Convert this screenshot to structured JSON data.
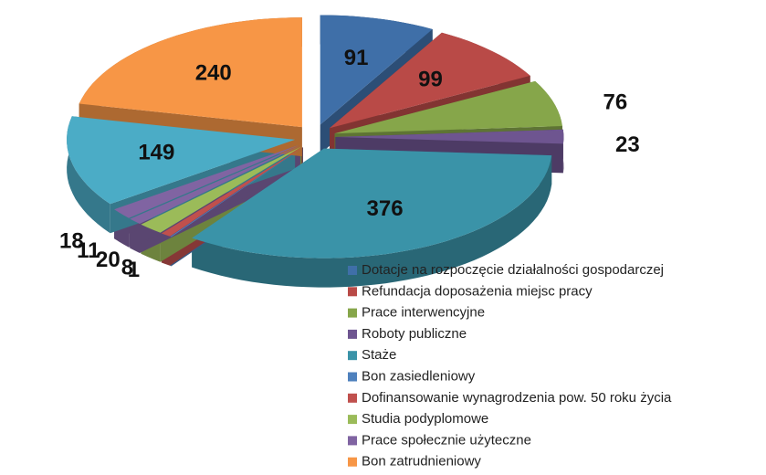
{
  "chart_data": {
    "type": "pie3d",
    "categories": [
      "Dotacje na rozpoczęcie działalności gospodarczej",
      "Refundacja doposażenia miejsc pracy",
      "Prace interwencyjne",
      "Roboty publiczne",
      "Staże",
      "Bon zasiedleniowy",
      "Dofinansowanie wynagrodzenia pow. 50 roku życia",
      "Studia podyplomowe",
      "Prace społecznie użyteczne",
      null,
      null,
      "Bon zatrudnieniowy"
    ],
    "values": [
      91,
      99,
      76,
      23,
      376,
      1,
      8,
      20,
      11,
      18,
      149,
      240
    ],
    "colors": [
      "#3f6fa8",
      "#b94a47",
      "#86a64a",
      "#6e5590",
      "#3a93a8",
      "#4f81bd",
      "#c0504d",
      "#9bbb59",
      "#8064a2",
      "#8064a2",
      "#4bacc6",
      "#f79646"
    ]
  }
}
